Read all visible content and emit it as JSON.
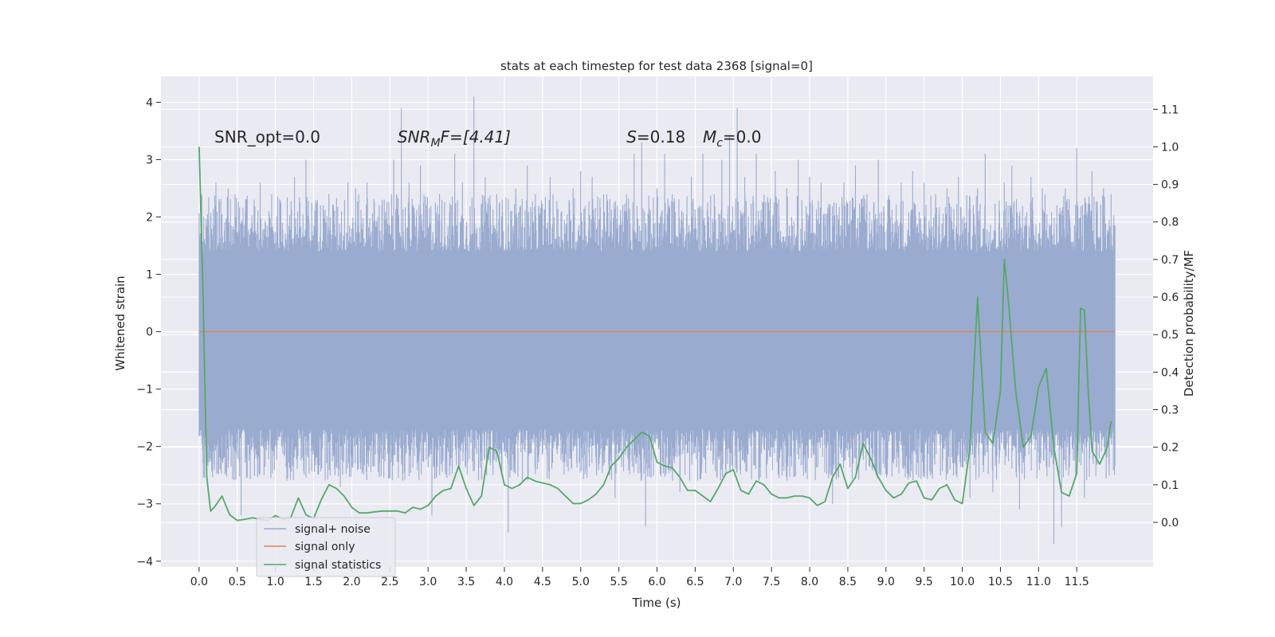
{
  "chart_data": {
    "type": "line",
    "title": "stats at each timestep for test data 2368 [signal=0]",
    "xlabel": "Time (s)",
    "ylabel": "Whitened strain",
    "y2label": "Detection probability/MF",
    "xlim": [
      -0.5,
      12.5
    ],
    "ylim": [
      -4.1,
      4.45
    ],
    "y2lim": [
      -0.1188,
      1.1875
    ],
    "xticks": [
      0.0,
      0.5,
      1.0,
      1.5,
      2.0,
      2.5,
      3.0,
      3.5,
      4.0,
      4.5,
      5.0,
      5.5,
      6.0,
      6.5,
      7.0,
      7.5,
      8.0,
      8.5,
      9.0,
      9.5,
      10.0,
      10.5,
      11.0,
      11.5
    ],
    "xtick_labels": [
      "0.0",
      "0.5",
      "1.0",
      "1.5",
      "2.0",
      "2.5",
      "3.0",
      "3.5",
      "4.0",
      "4.5",
      "5.0",
      "5.5",
      "6.0",
      "6.5",
      "7.0",
      "7.5",
      "8.0",
      "8.5",
      "9.0",
      "9.5",
      "10.0",
      "10.5",
      "11.0",
      "11.5"
    ],
    "yticks": [
      -4,
      -3,
      -2,
      -1,
      0,
      1,
      2,
      3,
      4
    ],
    "ytick_labels": [
      "−4",
      "−3",
      "−2",
      "−1",
      "0",
      "1",
      "2",
      "3",
      "4"
    ],
    "y2ticks": [
      0.0,
      0.1,
      0.2,
      0.3,
      0.4,
      0.5,
      0.6,
      0.7,
      0.8,
      0.9,
      1.0,
      1.1
    ],
    "y2tick_labels": [
      "0.0",
      "0.1",
      "0.2",
      "0.3",
      "0.4",
      "0.5",
      "0.6",
      "0.7",
      "0.8",
      "0.9",
      "1.0",
      "1.1"
    ],
    "grid": true,
    "legend_position": "lower-left",
    "annotations": [
      {
        "text": "SNR_opt=0.0",
        "x": 0.2,
        "y": 3.3
      },
      {
        "text": "SNR",
        "sub": "M",
        "after": "F=[4.41]",
        "italic": true,
        "x": 2.6,
        "y": 3.3
      },
      {
        "text": "S",
        "after": "=0.18",
        "italic": true,
        "x": 5.6,
        "y": 3.3
      },
      {
        "text": "M",
        "sub": "c",
        "after": "=0.0",
        "italic": true,
        "x": 6.6,
        "y": 3.3
      }
    ],
    "series": [
      {
        "name": "signal+ noise",
        "color": "#9aabd0",
        "style": "noise-band",
        "x_range": [
          0.0,
          12.0
        ],
        "band": [
          -1.7,
          1.4
        ],
        "peaks": [
          [
            0.03,
            2.4
          ],
          [
            0.22,
            2.6
          ],
          [
            0.38,
            2.5
          ],
          [
            0.55,
            -3.2
          ],
          [
            0.62,
            2.3
          ],
          [
            0.8,
            2.6
          ],
          [
            0.95,
            2.4
          ],
          [
            1.15,
            -2.6
          ],
          [
            1.25,
            2.7
          ],
          [
            1.4,
            3.0
          ],
          [
            1.55,
            2.3
          ],
          [
            1.7,
            2.4
          ],
          [
            1.85,
            -2.7
          ],
          [
            1.95,
            2.6
          ],
          [
            2.05,
            2.5
          ],
          [
            2.2,
            2.6
          ],
          [
            2.4,
            2.3
          ],
          [
            2.55,
            3.0
          ],
          [
            2.65,
            3.9
          ],
          [
            2.75,
            2.6
          ],
          [
            2.9,
            2.9
          ],
          [
            3.05,
            -3.2
          ],
          [
            3.15,
            2.4
          ],
          [
            3.35,
            3.1
          ],
          [
            3.45,
            2.6
          ],
          [
            3.6,
            4.1
          ],
          [
            3.75,
            2.7
          ],
          [
            3.9,
            2.4
          ],
          [
            4.05,
            -3.5
          ],
          [
            4.15,
            2.5
          ],
          [
            4.3,
            2.9
          ],
          [
            4.45,
            2.2
          ],
          [
            4.6,
            2.7
          ],
          [
            4.75,
            2.1
          ],
          [
            4.9,
            2.5
          ],
          [
            5.0,
            2.8
          ],
          [
            5.15,
            2.7
          ],
          [
            5.3,
            2.4
          ],
          [
            5.45,
            -2.9
          ],
          [
            5.6,
            2.4
          ],
          [
            5.7,
            3.1
          ],
          [
            5.8,
            3.3
          ],
          [
            5.85,
            -3.4
          ],
          [
            6.0,
            2.5
          ],
          [
            6.1,
            3.1
          ],
          [
            6.2,
            2.4
          ],
          [
            6.3,
            -2.8
          ],
          [
            6.45,
            2.7
          ],
          [
            6.6,
            3.1
          ],
          [
            6.75,
            2.4
          ],
          [
            6.85,
            3.0
          ],
          [
            6.95,
            3.4
          ],
          [
            7.05,
            3.9
          ],
          [
            7.15,
            2.7
          ],
          [
            7.3,
            3.1
          ],
          [
            7.45,
            2.3
          ],
          [
            7.55,
            2.8
          ],
          [
            7.7,
            2.5
          ],
          [
            7.85,
            3.0
          ],
          [
            8.0,
            2.7
          ],
          [
            8.15,
            2.6
          ],
          [
            8.3,
            -3.0
          ],
          [
            8.45,
            2.6
          ],
          [
            8.6,
            2.9
          ],
          [
            8.75,
            2.4
          ],
          [
            8.9,
            3.0
          ],
          [
            9.05,
            2.3
          ],
          [
            9.2,
            2.6
          ],
          [
            9.35,
            2.8
          ],
          [
            9.5,
            2.6
          ],
          [
            9.65,
            2.4
          ],
          [
            9.8,
            2.5
          ],
          [
            9.95,
            2.7
          ],
          [
            10.1,
            -2.9
          ],
          [
            10.2,
            2.5
          ],
          [
            10.3,
            3.1
          ],
          [
            10.4,
            -2.8
          ],
          [
            10.55,
            2.6
          ],
          [
            10.65,
            2.9
          ],
          [
            10.75,
            -3.1
          ],
          [
            10.9,
            2.7
          ],
          [
            11.05,
            2.5
          ],
          [
            11.2,
            -3.7
          ],
          [
            11.3,
            -3.4
          ],
          [
            11.35,
            2.5
          ],
          [
            11.5,
            3.2
          ],
          [
            11.6,
            -2.9
          ],
          [
            11.7,
            2.8
          ],
          [
            11.85,
            2.5
          ],
          [
            11.95,
            2.4
          ]
        ]
      },
      {
        "name": "signal only",
        "color": "#dd8452",
        "style": "line",
        "axis": "left",
        "x": [
          0.0,
          12.0
        ],
        "y": [
          0.0,
          0.0
        ]
      },
      {
        "name": "signal statistics",
        "color": "#55a868",
        "style": "line",
        "axis": "right",
        "x": [
          0.0,
          0.05,
          0.1,
          0.15,
          0.2,
          0.3,
          0.4,
          0.5,
          0.6,
          0.7,
          0.8,
          0.9,
          1.0,
          1.1,
          1.2,
          1.3,
          1.4,
          1.5,
          1.6,
          1.7,
          1.8,
          1.9,
          2.0,
          2.1,
          2.2,
          2.3,
          2.4,
          2.5,
          2.6,
          2.7,
          2.8,
          2.9,
          3.0,
          3.1,
          3.2,
          3.3,
          3.4,
          3.5,
          3.6,
          3.7,
          3.8,
          3.9,
          4.0,
          4.1,
          4.2,
          4.3,
          4.4,
          4.5,
          4.6,
          4.7,
          4.8,
          4.9,
          5.0,
          5.1,
          5.2,
          5.3,
          5.4,
          5.5,
          5.6,
          5.7,
          5.8,
          5.9,
          6.0,
          6.1,
          6.2,
          6.3,
          6.4,
          6.5,
          6.6,
          6.7,
          6.8,
          6.9,
          7.0,
          7.1,
          7.2,
          7.3,
          7.4,
          7.5,
          7.6,
          7.7,
          7.8,
          7.9,
          8.0,
          8.1,
          8.2,
          8.3,
          8.4,
          8.5,
          8.6,
          8.7,
          8.8,
          8.9,
          9.0,
          9.1,
          9.2,
          9.3,
          9.4,
          9.5,
          9.6,
          9.7,
          9.8,
          9.9,
          10.0,
          10.1,
          10.2,
          10.3,
          10.4,
          10.5,
          10.55,
          10.6,
          10.7,
          10.8,
          10.9,
          11.0,
          11.1,
          11.2,
          11.3,
          11.4,
          11.5,
          11.55,
          11.6,
          11.65,
          11.7,
          11.8,
          11.9,
          11.95
        ],
        "y": [
          1.0,
          0.62,
          0.12,
          0.03,
          0.04,
          0.07,
          0.02,
          0.005,
          0.008,
          0.012,
          0.008,
          0.005,
          0.018,
          0.008,
          0.012,
          0.065,
          0.02,
          0.01,
          0.06,
          0.1,
          0.09,
          0.07,
          0.04,
          0.025,
          0.025,
          0.028,
          0.03,
          0.03,
          0.03,
          0.025,
          0.04,
          0.035,
          0.045,
          0.07,
          0.085,
          0.09,
          0.15,
          0.09,
          0.045,
          0.07,
          0.2,
          0.19,
          0.1,
          0.09,
          0.1,
          0.12,
          0.11,
          0.105,
          0.1,
          0.09,
          0.07,
          0.05,
          0.05,
          0.06,
          0.075,
          0.1,
          0.15,
          0.17,
          0.2,
          0.22,
          0.24,
          0.23,
          0.16,
          0.15,
          0.145,
          0.12,
          0.085,
          0.085,
          0.07,
          0.055,
          0.09,
          0.13,
          0.14,
          0.085,
          0.075,
          0.11,
          0.1,
          0.075,
          0.065,
          0.065,
          0.07,
          0.07,
          0.065,
          0.045,
          0.055,
          0.12,
          0.155,
          0.09,
          0.12,
          0.21,
          0.17,
          0.12,
          0.085,
          0.065,
          0.075,
          0.105,
          0.11,
          0.065,
          0.06,
          0.09,
          0.1,
          0.06,
          0.05,
          0.2,
          0.6,
          0.24,
          0.21,
          0.35,
          0.7,
          0.6,
          0.35,
          0.2,
          0.23,
          0.36,
          0.41,
          0.2,
          0.08,
          0.07,
          0.13,
          0.57,
          0.565,
          0.35,
          0.19,
          0.155,
          0.2,
          0.27
        ]
      }
    ]
  }
}
